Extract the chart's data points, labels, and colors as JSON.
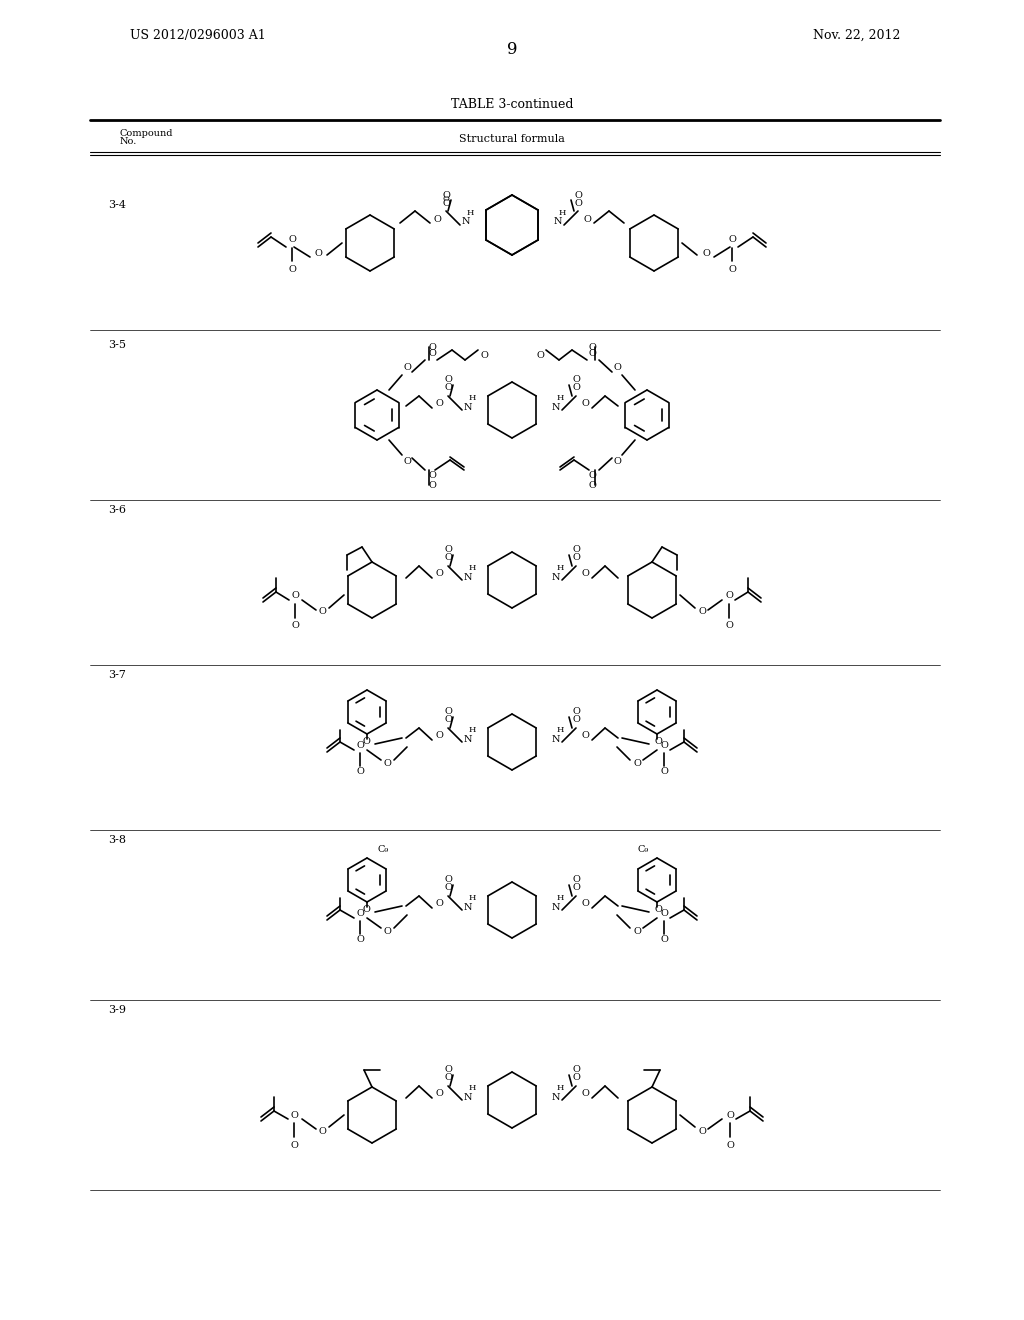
{
  "title": "TABLE 3-continued",
  "page_number": "9",
  "left_header": "US 2012/0296003 A1",
  "right_header": "Nov. 22, 2012",
  "col1_header": "Compound\nNo.",
  "col2_header": "Structural formula",
  "compounds": [
    "3-4",
    "3-5",
    "3-6",
    "3-7",
    "3-8",
    "3-9"
  ],
  "bg_color": "#ffffff",
  "text_color": "#000000"
}
